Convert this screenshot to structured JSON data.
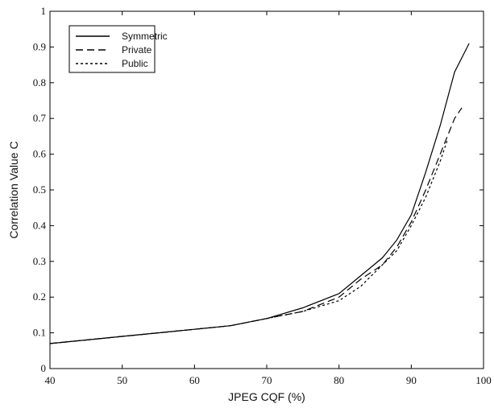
{
  "chart_data": {
    "type": "line",
    "title": "",
    "xlabel": "JPEG CQF (%)",
    "ylabel": "Correlation Value C",
    "xlim": [
      40,
      100
    ],
    "ylim": [
      0,
      1
    ],
    "x_ticks": [
      "40",
      "50",
      "60",
      "70",
      "80",
      "90",
      "100"
    ],
    "y_ticks": [
      "0",
      "0.1",
      "0.2",
      "0.3",
      "0.4",
      "0.5",
      "0.6",
      "0.7",
      "0.8",
      "0.9",
      "1"
    ],
    "grid": false,
    "legend_position": "top-left",
    "series": [
      {
        "name": "Symmetric",
        "line_style": "solid",
        "color": "#000000",
        "x": [
          40,
          45,
          50,
          55,
          60,
          65,
          70,
          75,
          80,
          83,
          86,
          88,
          90,
          92,
          94,
          96,
          98
        ],
        "y": [
          0.07,
          0.08,
          0.09,
          0.1,
          0.11,
          0.12,
          0.14,
          0.17,
          0.21,
          0.26,
          0.31,
          0.36,
          0.43,
          0.55,
          0.68,
          0.83,
          0.91
        ]
      },
      {
        "name": "Private",
        "line_style": "dashed",
        "color": "#000000",
        "x": [
          40,
          45,
          50,
          55,
          60,
          65,
          70,
          75,
          80,
          83,
          86,
          88,
          90,
          92,
          94,
          96,
          97
        ],
        "y": [
          0.07,
          0.08,
          0.09,
          0.1,
          0.11,
          0.12,
          0.14,
          0.16,
          0.2,
          0.25,
          0.29,
          0.34,
          0.41,
          0.5,
          0.6,
          0.7,
          0.73
        ]
      },
      {
        "name": "Public",
        "line_style": "dotted",
        "color": "#000000",
        "x": [
          40,
          45,
          50,
          55,
          60,
          65,
          70,
          75,
          80,
          83,
          84,
          86,
          88,
          90,
          92,
          94,
          95
        ],
        "y": [
          0.07,
          0.08,
          0.09,
          0.1,
          0.11,
          0.12,
          0.14,
          0.16,
          0.19,
          0.23,
          0.25,
          0.29,
          0.33,
          0.4,
          0.48,
          0.58,
          0.64
        ]
      }
    ]
  }
}
